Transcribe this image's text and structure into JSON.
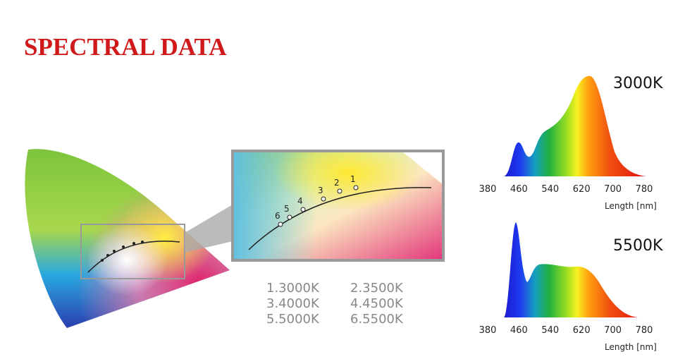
{
  "header": {
    "title": "SPECTRAL DATA"
  },
  "cie": {
    "points": [
      "1",
      "2",
      "3",
      "4",
      "5",
      "6"
    ],
    "legend": [
      "1.3000K",
      "2.3500K",
      "3.4000K",
      "4.4500K",
      "5.5000K",
      "6.5500K"
    ]
  },
  "spectra": [
    {
      "label": "3000K",
      "xticks": [
        380,
        460,
        540,
        620,
        700,
        780
      ],
      "xlabel": "Length [nm]"
    },
    {
      "label": "5500K",
      "xticks": [
        380,
        460,
        540,
        620,
        700,
        780
      ],
      "xlabel": "Length [nm]"
    }
  ]
}
